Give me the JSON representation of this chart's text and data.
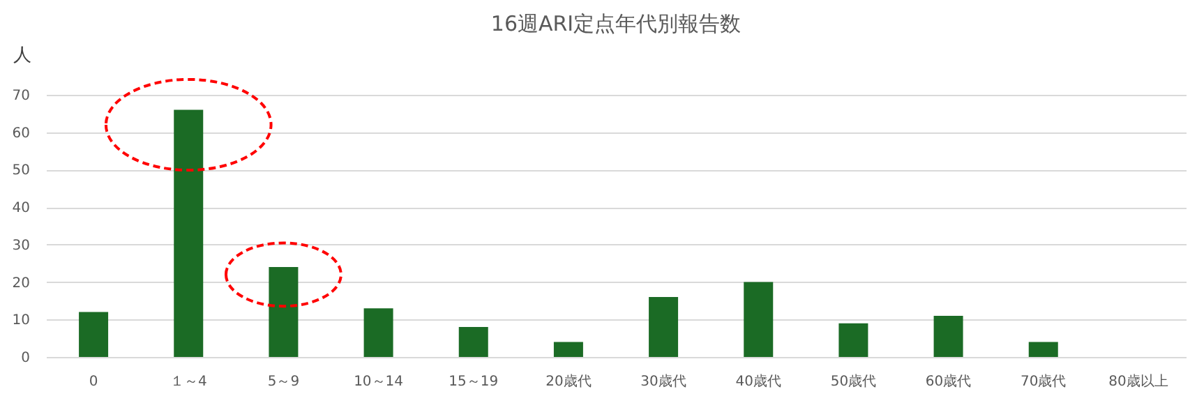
{
  "chart_data": {
    "type": "bar",
    "title": "16週ARI定点年代別報告数",
    "ylabel": "人",
    "categories": [
      "0",
      "１～4",
      "5～9",
      "10～14",
      "15～19",
      "20歳代",
      "30歳代",
      "40歳代",
      "50歳代",
      "60歳代",
      "70歳代",
      "80歳以上"
    ],
    "values": [
      12,
      66,
      24,
      13,
      8,
      4,
      16,
      20,
      9,
      11,
      4,
      0
    ],
    "color": "#1b6b25",
    "ylim": [
      0,
      70
    ],
    "yticks": [
      0,
      10,
      20,
      30,
      40,
      50,
      60,
      70
    ],
    "grid": "y"
  }
}
